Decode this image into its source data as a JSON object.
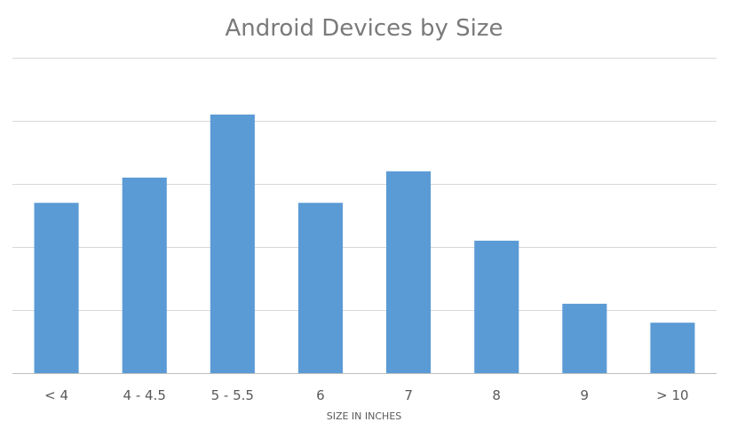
{
  "chart_data": {
    "type": "bar",
    "title": "Android Devices by Size",
    "xlabel": "SIZE IN INCHES",
    "ylabel": "",
    "categories": [
      "< 4",
      "4 - 4.5",
      "5 - 5.5",
      "6",
      "7",
      "8",
      "9",
      "> 10"
    ],
    "values": [
      2.7,
      3.1,
      4.1,
      2.7,
      3.2,
      2.1,
      1.1,
      0.8
    ],
    "ylim": [
      0,
      5
    ],
    "yticks": [
      0,
      1,
      2,
      3,
      4,
      5
    ],
    "y_tick_labels_shown": false,
    "grid": true,
    "legend": "none",
    "bar_color": "#5b9bd5"
  }
}
